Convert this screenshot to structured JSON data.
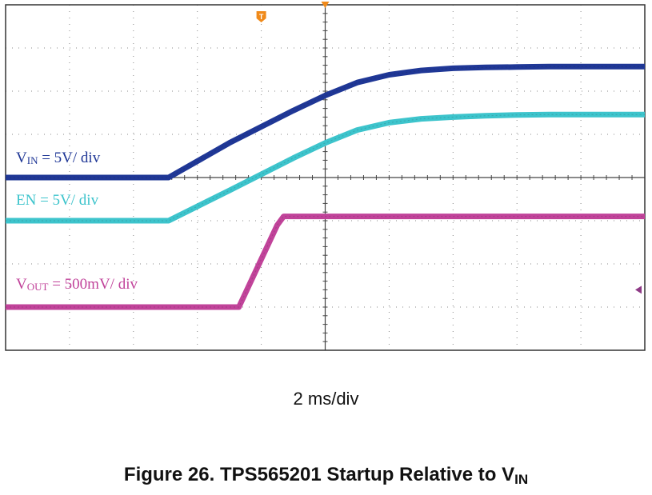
{
  "chart_data": {
    "type": "line",
    "title": "Figure 26. TPS565201 Startup Relative to V",
    "title_subscript": "IN",
    "xlabel": "2 ms/div",
    "x_unit": "ms",
    "x_range": [
      -10,
      10
    ],
    "y_unit": "div",
    "y_range": [
      0,
      8
    ],
    "grid": true,
    "series": [
      {
        "name": "V",
        "name_subscript": "IN",
        "scale": " = 5V/ div",
        "color": "#1f3796",
        "x": [
          -10,
          -4.9,
          -3,
          -1,
          0,
          1,
          2,
          3,
          4,
          5,
          6,
          7,
          8,
          10
        ],
        "y": [
          4.0,
          4.0,
          4.8,
          5.55,
          5.9,
          6.2,
          6.38,
          6.48,
          6.53,
          6.55,
          6.56,
          6.57,
          6.57,
          6.57
        ]
      },
      {
        "name": "EN = 5V/ div",
        "color": "#3dc4cc",
        "x": [
          -10,
          -4.9,
          -3,
          -1,
          0,
          1,
          2,
          3,
          4,
          5,
          6,
          7,
          8,
          10
        ],
        "y": [
          3.0,
          3.0,
          3.7,
          4.45,
          4.8,
          5.1,
          5.27,
          5.36,
          5.4,
          5.43,
          5.45,
          5.46,
          5.46,
          5.46
        ]
      },
      {
        "name": "V",
        "name_subscript": "OUT",
        "scale": " = 500mV/ div",
        "color": "#c1439a",
        "x": [
          -10,
          -2.7,
          -1.5,
          -1.3,
          10
        ],
        "y": [
          1.0,
          1.0,
          2.9,
          3.1,
          3.1
        ]
      }
    ],
    "markers": {
      "trigger": "T",
      "trigger_position_ms": -2,
      "trigger_color": "#f08a1a",
      "level_marker_color": "#8e3a86"
    }
  }
}
